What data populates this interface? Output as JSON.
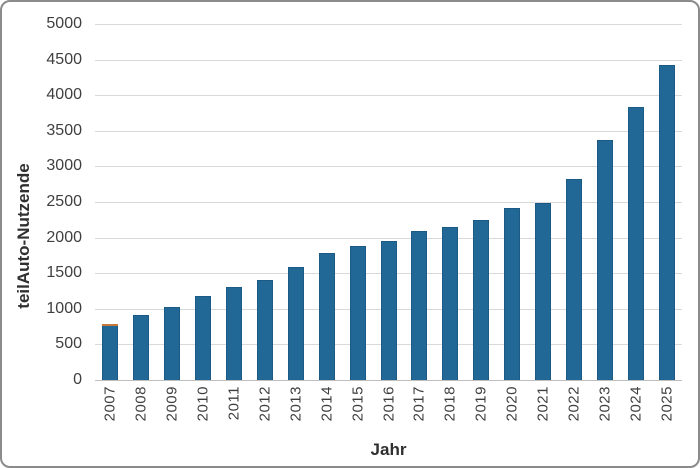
{
  "chart_data": {
    "type": "bar",
    "title": "",
    "xlabel": "Jahr",
    "ylabel": "teilAuto-Nutzende",
    "categories": [
      "2007",
      "2008",
      "2009",
      "2010",
      "2011",
      "2012",
      "2013",
      "2014",
      "2015",
      "2016",
      "2017",
      "2018",
      "2019",
      "2020",
      "2021",
      "2022",
      "2023",
      "2024",
      "2025"
    ],
    "values": [
      770,
      920,
      1025,
      1180,
      1305,
      1405,
      1590,
      1790,
      1885,
      1955,
      2095,
      2150,
      2245,
      2410,
      2480,
      2830,
      3370,
      3840,
      4425
    ],
    "ylim": [
      0,
      5000
    ],
    "yticks": [
      0,
      500,
      1000,
      1500,
      2000,
      2500,
      3000,
      3500,
      4000,
      4500,
      5000
    ],
    "grid": true,
    "legend": "none",
    "annotations": {
      "bar_2007_orange_cap": true
    }
  },
  "colors": {
    "bar_fill": "#226896",
    "bar_edge": "#1b5a84",
    "bar_2007_cap": "#c57a3c",
    "gridline": "#d9d9d9",
    "axis_line": "#bfbfbf",
    "tick_label": "#3f3f3f",
    "axis_title": "#303030",
    "chart_border": "#8b8b8b",
    "background": "#ffffff"
  }
}
